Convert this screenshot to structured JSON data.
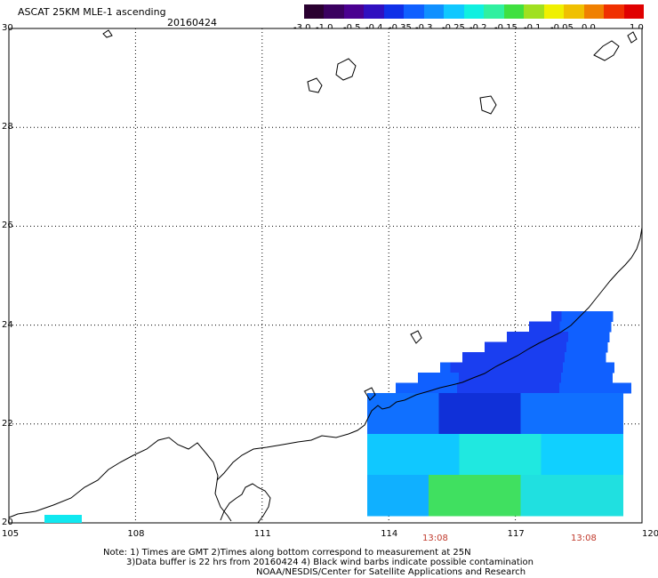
{
  "header": {
    "title": "ASCAT 25KM MLE-1 ascending",
    "date": "20160424"
  },
  "colorbar": {
    "labels": [
      "-3.0",
      "-1.0",
      "-0.5",
      "-0.4",
      "-0.35",
      "-0.3",
      "-0.25",
      "-0.2",
      "-0.15",
      "-0.1",
      "-0.05",
      "0.0",
      "1.0"
    ],
    "colors": [
      "#2a0030",
      "#3a0060",
      "#4a0090",
      "#3010c0",
      "#1030e8",
      "#1060ff",
      "#1090ff",
      "#10c8ff",
      "#10f0e0",
      "#30f0a0",
      "#40e040",
      "#a0e020",
      "#f0f000",
      "#f0c000",
      "#f08000",
      "#f03000",
      "#e00000"
    ]
  },
  "map": {
    "lat_labels": [
      "30",
      "28",
      "26",
      "24",
      "22",
      "20"
    ],
    "lon_labels": [
      "105",
      "108",
      "111",
      "114",
      "117",
      "120"
    ],
    "pass_times": [
      "13:08",
      "13:08"
    ]
  },
  "notes": {
    "line1": "Note: 1) Times are GMT 2)Times along bottom correspond to measurement at 25N",
    "line2": "3)Data buffer is 22 hrs from 20160424 4) Black wind barbs indicate possible contamination",
    "line3": "NOAA/NESDIS/Center for Satellite Applications and Research"
  }
}
